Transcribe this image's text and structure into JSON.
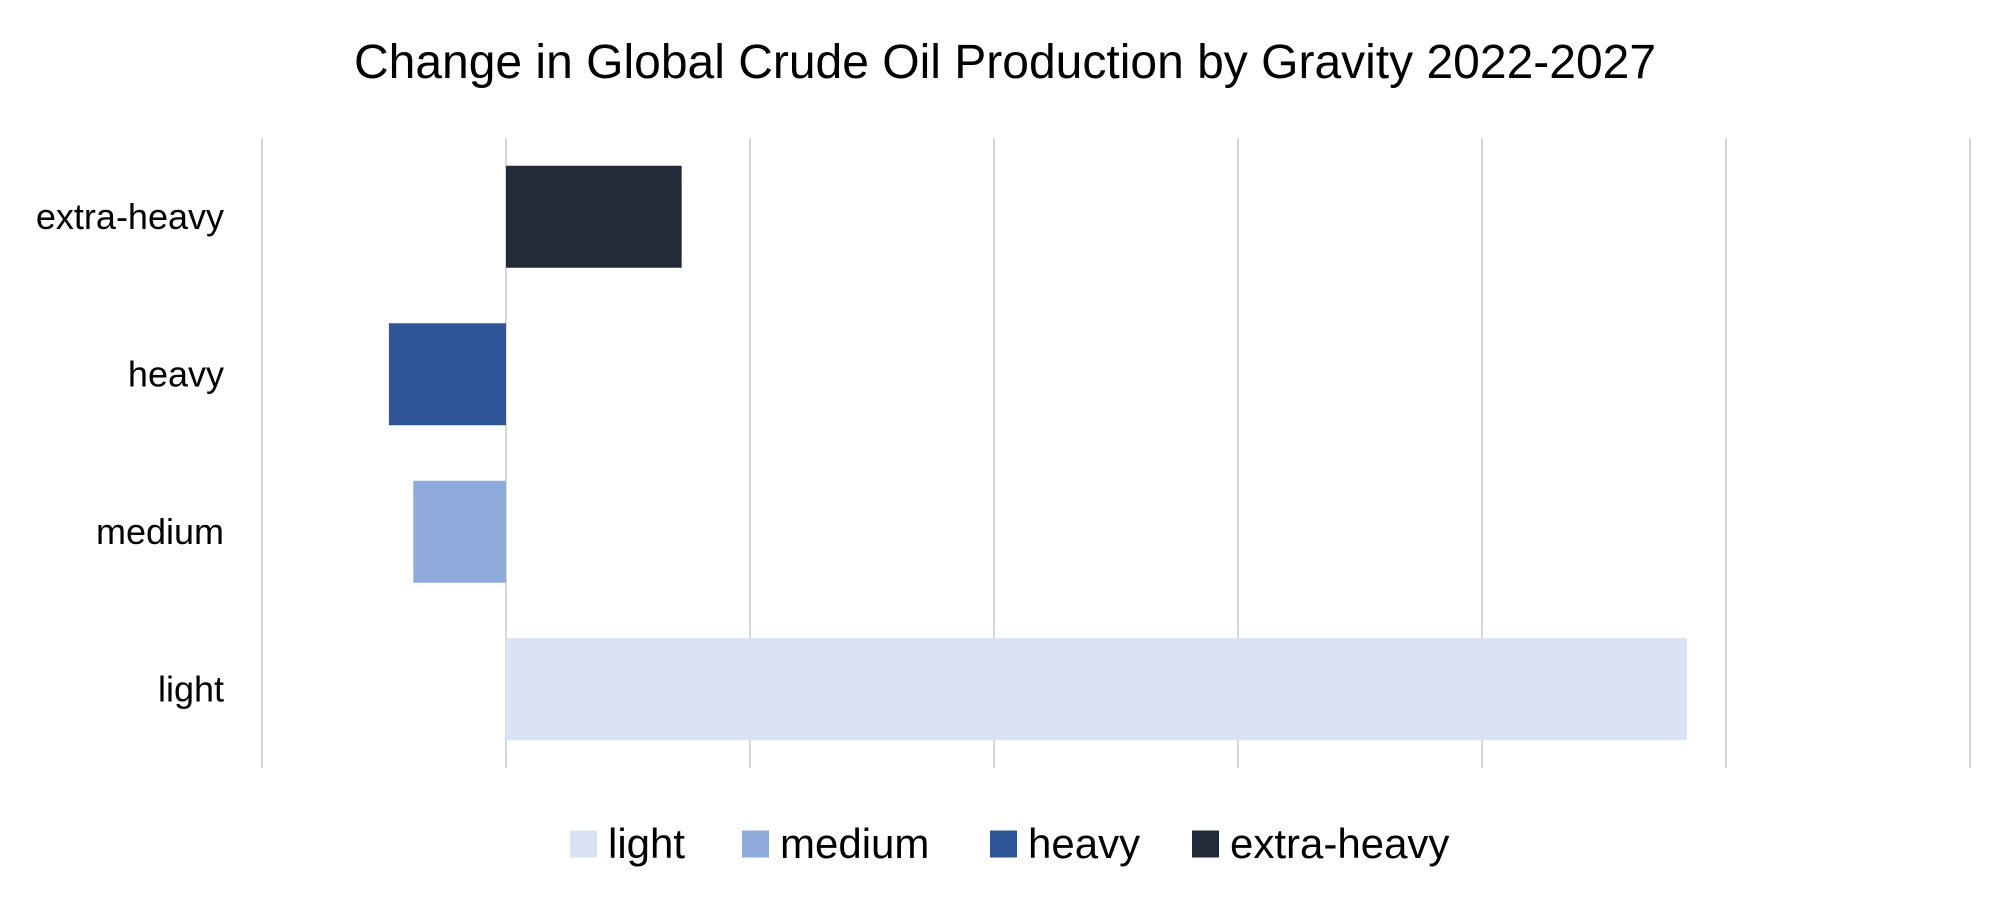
{
  "chart_data": {
    "type": "bar",
    "orientation": "horizontal",
    "title": "Change in Global Crude Oil Production by Gravity 2022-2027",
    "xlabel": "",
    "ylabel": "",
    "categories": [
      "extra-heavy",
      "heavy",
      "medium",
      "light"
    ],
    "values": [
      0.72,
      -0.48,
      -0.38,
      4.84
    ],
    "colors": [
      "#232b38",
      "#2f5597",
      "#8fabdc",
      "#dae3f3"
    ],
    "xlim": [
      -1,
      6
    ],
    "x_tick_step": 1,
    "tick_labels_shown": false,
    "grid": true,
    "legend": {
      "position": "bottom",
      "entries": [
        "light",
        "medium",
        "heavy",
        "extra-heavy"
      ],
      "colors": [
        "#dae3f3",
        "#8fabdc",
        "#2f5597",
        "#232b38"
      ]
    }
  }
}
